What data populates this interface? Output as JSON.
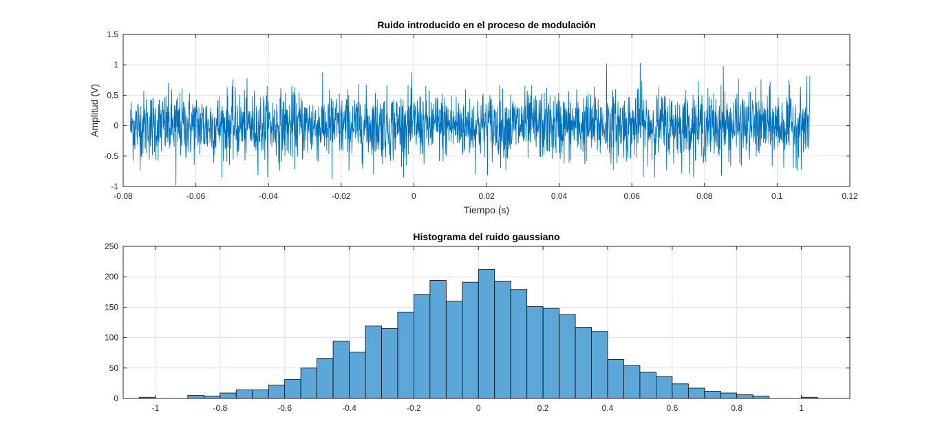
{
  "chart_data": [
    {
      "type": "line",
      "title": "Ruido introducido en el proceso de modulación",
      "xlabel": "Tiempo (s)",
      "ylabel": "Amplitud (V)",
      "xlim": [
        -0.08,
        0.12
      ],
      "ylim": [
        -1,
        1.5
      ],
      "xticks": [
        -0.08,
        -0.06,
        -0.04,
        -0.02,
        0,
        0.02,
        0.04,
        0.06,
        0.08,
        0.1,
        0.12
      ],
      "xtick_labels": [
        "-0.08",
        "-0.06",
        "-0.04",
        "-0.02",
        "0",
        "0.02",
        "0.04",
        "0.06",
        "0.08",
        "0.1",
        "0.12"
      ],
      "yticks": [
        -1,
        -0.5,
        0,
        0.5,
        1,
        1.5
      ],
      "ytick_labels": [
        "-1",
        "-0.5",
        "0",
        "0.5",
        "1",
        "1.5"
      ],
      "grid": true,
      "color": "#0072BD",
      "series": [
        {
          "x_range": [
            -0.078,
            0.109
          ],
          "num_points": 2600,
          "std": 0.28,
          "peaks": [
            [
              -0.0655,
              -0.98
            ],
            [
              0.053,
              1.02
            ],
            [
              0.0623,
              1.03
            ],
            [
              0.0852,
              0.98
            ],
            [
              0.109,
              0.82
            ],
            [
              -0.0225,
              -0.88
            ]
          ]
        }
      ]
    },
    {
      "type": "bar",
      "title": "Histograma del ruido gaussiano",
      "xlabel": "",
      "ylabel": "",
      "xlim": [
        -1.1,
        1.15
      ],
      "ylim": [
        0,
        250
      ],
      "xticks": [
        -1,
        -0.8,
        -0.6,
        -0.4,
        -0.2,
        0,
        0.2,
        0.4,
        0.6,
        0.8,
        1
      ],
      "xtick_labels": [
        "-1",
        "-0.8",
        "-0.6",
        "-0.4",
        "-0.2",
        "0",
        "0.2",
        "0.4",
        "0.6",
        "0.8",
        "1"
      ],
      "yticks": [
        0,
        50,
        100,
        150,
        200,
        250
      ],
      "ytick_labels": [
        "0",
        "50",
        "100",
        "150",
        "200",
        "250"
      ],
      "grid": true,
      "color": "#5DA6D8",
      "edge_color": "#000000",
      "bin_edges": [
        -1.05,
        -1.0,
        -0.95,
        -0.9,
        -0.85,
        -0.8,
        -0.75,
        -0.7,
        -0.65,
        -0.6,
        -0.55,
        -0.5,
        -0.45,
        -0.4,
        -0.35,
        -0.3,
        -0.25,
        -0.2,
        -0.15,
        -0.1,
        -0.05,
        0,
        0.05,
        0.1,
        0.15,
        0.2,
        0.25,
        0.3,
        0.35,
        0.4,
        0.45,
        0.5,
        0.55,
        0.6,
        0.65,
        0.7,
        0.75,
        0.8,
        0.85,
        0.9,
        0.95,
        1.0,
        1.05
      ],
      "counts": [
        2,
        0,
        0,
        5,
        4,
        9,
        14,
        14,
        22,
        31,
        50,
        66,
        94,
        76,
        119,
        115,
        142,
        171,
        194,
        160,
        191,
        212,
        193,
        179,
        151,
        148,
        138,
        117,
        110,
        64,
        54,
        43,
        36,
        24,
        17,
        12,
        9,
        6,
        4,
        0,
        0,
        2
      ]
    }
  ]
}
